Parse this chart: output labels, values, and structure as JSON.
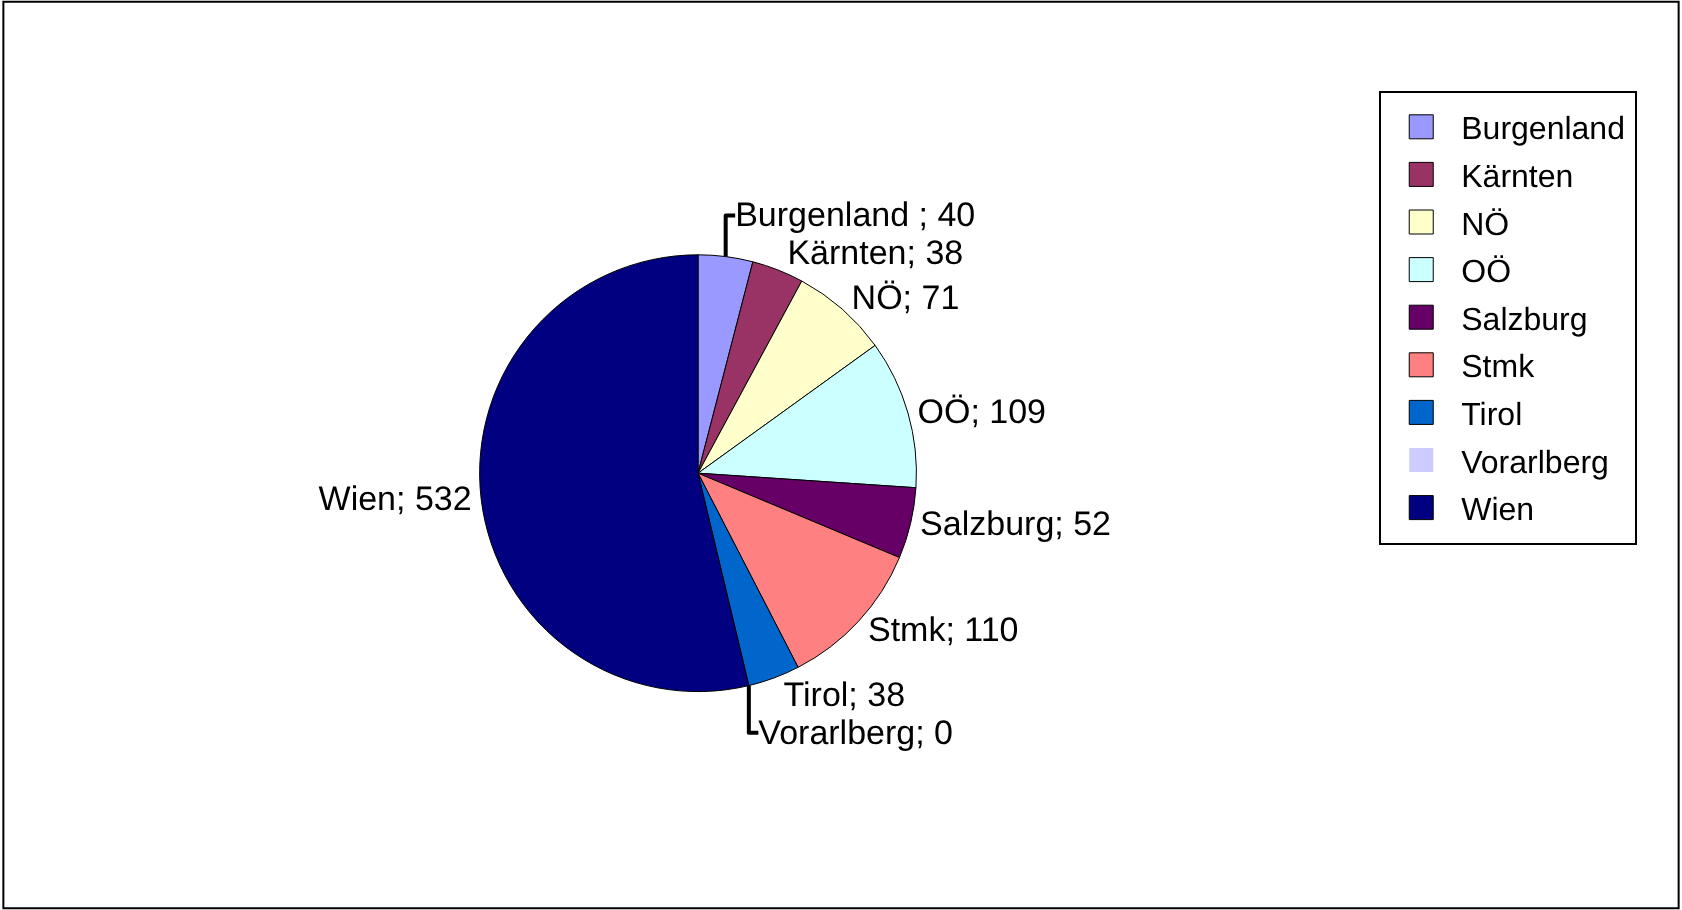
{
  "chart_data": {
    "type": "pie",
    "categories": [
      "Burgenland",
      "Kärnten",
      "NÖ",
      "OÖ",
      "Salzburg",
      "Stmk",
      "Tirol",
      "Vorarlberg",
      "Wien"
    ],
    "values": [
      40,
      38,
      71,
      109,
      52,
      110,
      38,
      0,
      532
    ],
    "colors": [
      "#9999ff",
      "#993366",
      "#ffffcc",
      "#ccffff",
      "#660066",
      "#ff8080",
      "#0066cc",
      "#ccccff",
      "#000080"
    ],
    "value_labels": [
      "Burgenland ; 40",
      "Kärnten; 38",
      "NÖ; 71",
      "OÖ; 109",
      "Salzburg; 52",
      "Stmk; 110",
      "Tirol; 38",
      "Vorarlberg; 0",
      "Wien; 532"
    ],
    "legend": "right"
  }
}
